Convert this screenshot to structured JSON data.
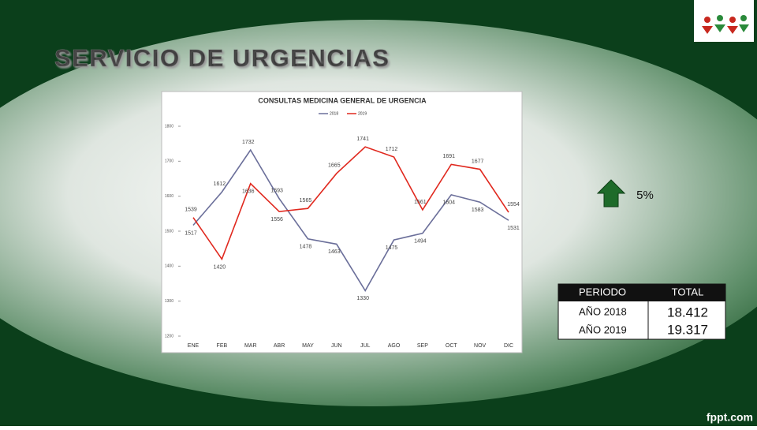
{
  "slide": {
    "title": "SERVICIO DE URGENCIAS",
    "change": "5%",
    "footer": "fppt.com"
  },
  "table": {
    "header": [
      "PERIODO",
      "TOTAL"
    ],
    "rows": [
      [
        "AÑO 2018",
        "18.412"
      ],
      [
        "AÑO 2019",
        "19.317"
      ]
    ]
  },
  "chart_data": {
    "type": "line",
    "title": "CONSULTAS MEDICINA GENERAL DE URGENCIA",
    "categories": [
      "ENE",
      "FEB",
      "MAR",
      "ABR",
      "MAY",
      "JUN",
      "JUL",
      "AGO",
      "SEP",
      "OCT",
      "NOV",
      "DIC"
    ],
    "series": [
      {
        "name": "2018",
        "color": "#6b6f9a",
        "values": [
          1517,
          1612,
          1732,
          1593,
          1478,
          1463,
          1330,
          1475,
          1494,
          1604,
          1583,
          1531
        ]
      },
      {
        "name": "2019",
        "color": "#e0281e",
        "values": [
          1539,
          1420,
          1636,
          1556,
          1565,
          1665,
          1741,
          1712,
          1561,
          1691,
          1677,
          1554
        ]
      }
    ],
    "ylim": [
      1200,
      1800
    ],
    "yticks": [
      1200,
      1300,
      1400,
      1500,
      1600,
      1700,
      1800
    ],
    "legend": "top"
  }
}
